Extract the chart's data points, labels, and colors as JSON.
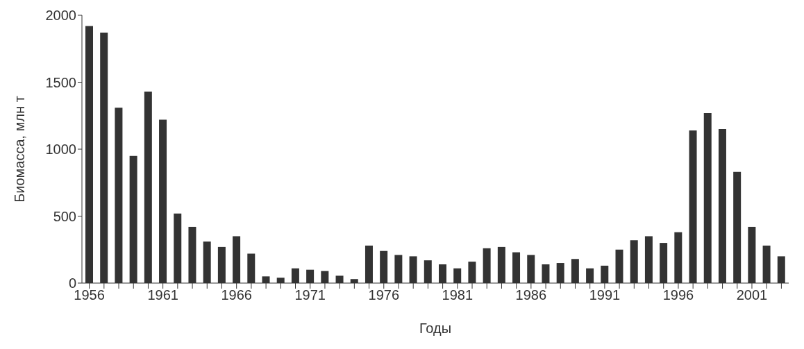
{
  "chart_data": {
    "type": "bar",
    "xlabel": "Годы",
    "ylabel": "Биомасса, млн т",
    "categories": [
      "1956",
      null,
      null,
      null,
      null,
      "1961",
      null,
      null,
      null,
      null,
      "1966",
      null,
      null,
      null,
      null,
      "1971",
      null,
      null,
      null,
      null,
      "1976",
      null,
      null,
      null,
      null,
      "1981",
      null,
      null,
      null,
      null,
      "1986",
      null,
      null,
      null,
      null,
      "1991",
      null,
      null,
      null,
      null,
      "1996",
      null,
      null,
      null,
      null,
      "2001",
      null,
      null
    ],
    "values": [
      1920,
      1870,
      1310,
      950,
      1430,
      1220,
      520,
      420,
      310,
      270,
      350,
      220,
      50,
      40,
      110,
      100,
      90,
      55,
      30,
      280,
      240,
      210,
      200,
      170,
      140,
      110,
      160,
      260,
      270,
      230,
      210,
      140,
      150,
      180,
      110,
      130,
      250,
      320,
      350,
      300,
      380,
      1140,
      1270,
      1150,
      830,
      420,
      280,
      200
    ],
    "color": "#333333",
    "ylim": [
      0,
      2000
    ],
    "yticks": [
      0,
      500,
      1000,
      1500,
      2000
    ],
    "grid": false,
    "legend": false
  }
}
